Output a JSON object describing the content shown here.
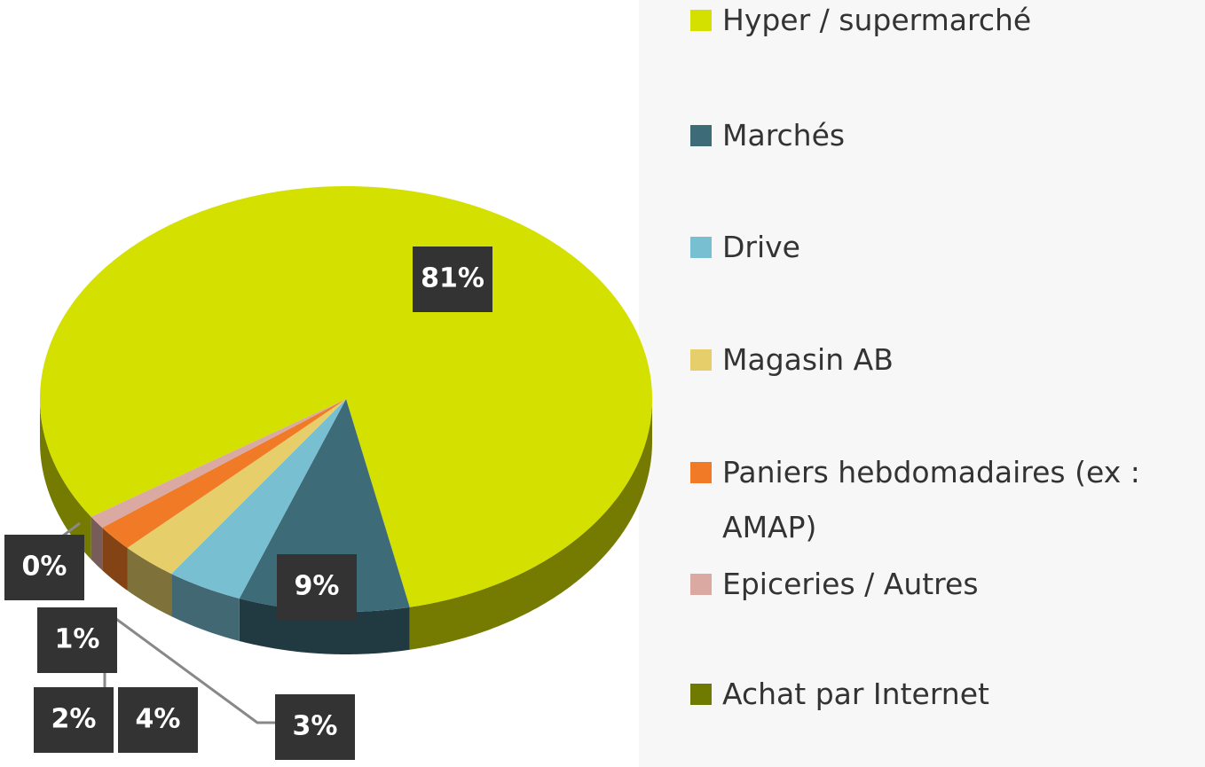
{
  "chart_data": {
    "type": "pie",
    "categories": [
      "Hyper / supermarché",
      "Marchés",
      "Drive",
      "Magasin AB",
      "Paniers hebdomadaires (ex : AMAP)",
      "Epiceries / Autres",
      "Achat par Internet"
    ],
    "values": [
      81,
      9,
      4,
      3,
      2,
      1,
      0
    ],
    "value_labels": [
      "81%",
      "9%",
      "4%",
      "3%",
      "2%",
      "1%",
      "0%"
    ],
    "colors": [
      "#d4e000",
      "#3d6b78",
      "#79bfd2",
      "#e6cf6b",
      "#f07a25",
      "#d9a9a2",
      "#6f7a00"
    ]
  }
}
